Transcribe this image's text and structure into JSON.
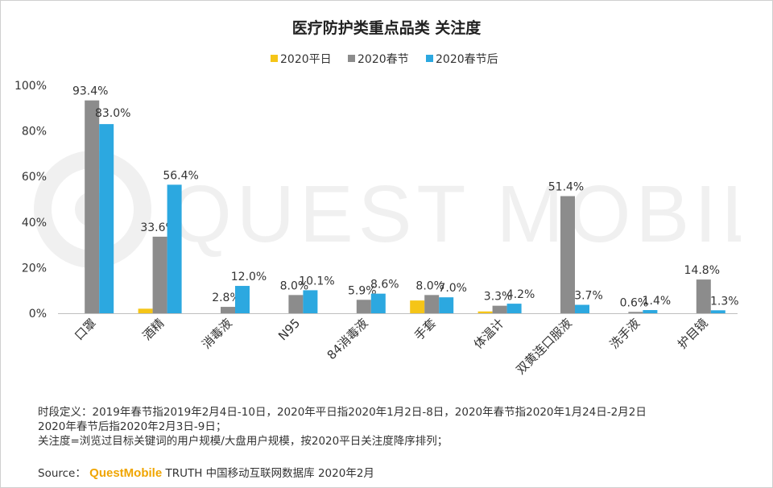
{
  "chart_data": {
    "type": "bar",
    "title": "医疗防护类重点品类 关注度",
    "categories": [
      "口罩",
      "酒精",
      "消毒液",
      "N95",
      "84消毒液",
      "手套",
      "体温计",
      "双黄连口服液",
      "洗手液",
      "护目镜"
    ],
    "series": [
      {
        "name": "2020平日",
        "color": "#f5c518",
        "values": [
          0,
          2.0,
          0,
          0,
          0,
          5.6,
          0.8,
          0,
          0,
          0
        ],
        "labels": [
          "",
          "",
          "",
          "",
          "",
          "",
          "",
          "",
          "",
          ""
        ]
      },
      {
        "name": "2020春节",
        "color": "#8c8c8c",
        "values": [
          93.4,
          33.6,
          2.8,
          8.0,
          5.9,
          8.0,
          3.3,
          51.4,
          0.6,
          14.8
        ],
        "labels": [
          "93.4%",
          "33.6%",
          "2.8%",
          "8.0%",
          "5.9%",
          "8.0%",
          "3.3%",
          "51.4%",
          "0.6%",
          "14.8%"
        ]
      },
      {
        "name": "2020春节后",
        "color": "#2ca8e0",
        "values": [
          83.0,
          56.4,
          12.0,
          10.1,
          8.6,
          7.0,
          4.2,
          3.7,
          1.4,
          1.3
        ],
        "labels": [
          "83.0%",
          "56.4%",
          "12.0%",
          "10.1%",
          "8.6%",
          "7.0%",
          "4.2%",
          "3.7%",
          "1.4%",
          "1.3%"
        ]
      }
    ],
    "y_ticks": [
      "0%",
      "20%",
      "40%",
      "60%",
      "80%",
      "100%"
    ],
    "ylim": [
      0,
      100
    ],
    "legend_position": "top-center",
    "grid": false
  },
  "watermark": "QUEST MOBILE",
  "notes": [
    "时段定义：2019年春节指2019年2月4日-10日，2020年平日指2020年1月2日-8日，2020年春节指2020年1月24日-2月2日",
    "2020年春节后指2020年2月3日-9日；",
    "关注度=浏览过目标关键词的用户规模/大盘用户规模，按2020平日关注度降序排列；"
  ],
  "source": {
    "label": "Source：",
    "brand": "QuestMobile",
    "text": " TRUTH 中国移动互联网数据库 2020年2月"
  }
}
